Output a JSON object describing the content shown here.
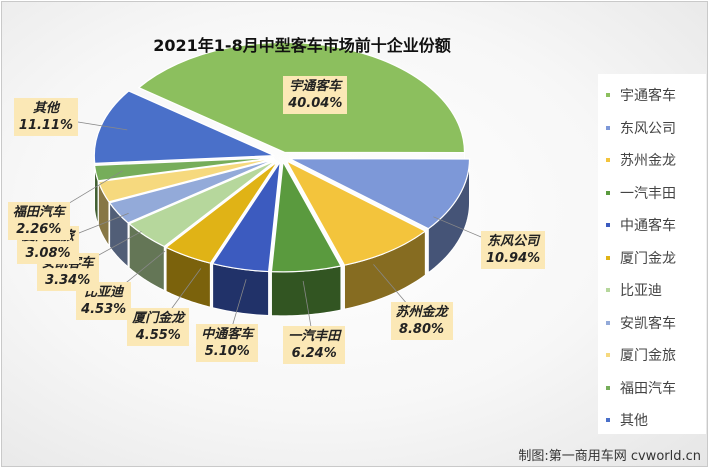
{
  "chart_data": {
    "type": "pie",
    "title": "2021年1-8月中型客车市场前十企业份额",
    "categories": [
      "宇通客车",
      "东风公司",
      "苏州金龙",
      "一汽丰田",
      "中通客车",
      "厦门金龙",
      "比亚迪",
      "安凯客车",
      "厦门金旅",
      "福田汽车",
      "其他"
    ],
    "values": [
      40.04,
      10.94,
      8.8,
      6.24,
      5.1,
      4.55,
      4.53,
      3.34,
      3.08,
      2.26,
      11.11
    ],
    "labels": [
      "40.04%",
      "10.94%",
      "8.80%",
      "6.24%",
      "5.10%",
      "4.55%",
      "4.53%",
      "3.34%",
      "3.08%",
      "2.26%",
      "11.11%"
    ],
    "colors": [
      "#8cbf5e",
      "#7d98d8",
      "#f3c43c",
      "#5a9a3e",
      "#3c5bbf",
      "#e0b316",
      "#b6d79c",
      "#93aad9",
      "#f6d97e",
      "#76ad5a",
      "#4a70c9"
    ],
    "legend_position": "right",
    "style": "3d-exploded"
  },
  "credit": "制图:第一商用车网 cvworld.cn"
}
